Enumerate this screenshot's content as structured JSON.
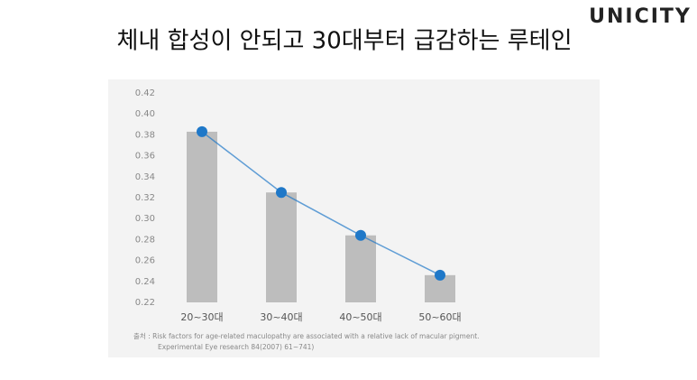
{
  "brand": "UNICITY",
  "chart_data": {
    "type": "bar",
    "title": "체내 합성이 안되고 30대부터 급감하는 루테인",
    "categories": [
      "20~30대",
      "30~40대",
      "40~50대",
      "50~60대"
    ],
    "series": [
      {
        "type": "bar",
        "color": "#bdbdbd",
        "values": [
          0.383,
          0.325,
          0.284,
          0.246
        ]
      },
      {
        "type": "line",
        "color": "#1f78c8",
        "values": [
          0.383,
          0.325,
          0.284,
          0.246
        ]
      }
    ],
    "ylim": [
      0.22,
      0.42
    ],
    "yticks": [
      0.22,
      0.24,
      0.26,
      0.28,
      {
        "value": 0.3,
        "label": "0.30"
      },
      0.32,
      0.34,
      0.36,
      0.38,
      {
        "value": 0.4,
        "label": "0.40"
      },
      0.42
    ],
    "grid": false,
    "source": [
      "출처 : Risk factors for age-related maculopathy are associated with a relative lack of macular pigment.",
      "Experimental Eye research 84(2007) 61~741)"
    ]
  }
}
